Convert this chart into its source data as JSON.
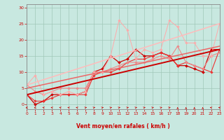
{
  "xlabel": "Vent moyen/en rafales ( km/h )",
  "background_color": "#c8e8e0",
  "grid_color": "#a0c8b8",
  "x_ticks": [
    0,
    1,
    2,
    3,
    4,
    5,
    6,
    7,
    8,
    9,
    10,
    11,
    12,
    13,
    14,
    15,
    16,
    17,
    18,
    19,
    20,
    21,
    22,
    23
  ],
  "y_ticks": [
    0,
    5,
    10,
    15,
    20,
    25,
    30
  ],
  "xlim": [
    0,
    23
  ],
  "ylim": [
    -1.5,
    31
  ],
  "series": [
    {
      "x": [
        0,
        1,
        2,
        3,
        4,
        5,
        6,
        7,
        8,
        9,
        10,
        11,
        12,
        13,
        14,
        15,
        16,
        17,
        18,
        19,
        20,
        21,
        22,
        23
      ],
      "y": [
        3,
        0,
        1,
        3,
        3,
        3,
        3,
        4,
        10,
        11,
        15,
        13,
        14,
        17,
        15,
        15,
        16,
        15,
        12,
        12,
        11,
        10,
        17,
        17
      ],
      "color": "#cc0000",
      "linewidth": 0.9,
      "marker": "D",
      "markersize": 2.0
    },
    {
      "x": [
        0,
        1,
        2,
        3,
        4,
        5,
        6,
        7,
        8,
        9,
        10,
        11,
        12,
        13,
        14,
        15,
        16,
        17,
        18,
        19,
        20,
        21,
        22,
        23
      ],
      "y": [
        3,
        1,
        1,
        2,
        3,
        3,
        3,
        3,
        9,
        10,
        10,
        11,
        13,
        14,
        14,
        15,
        16,
        15,
        12,
        13,
        12,
        11,
        10,
        17
      ],
      "color": "#ee3333",
      "linewidth": 0.8,
      "marker": "D",
      "markersize": 1.8
    },
    {
      "x": [
        0,
        1,
        2,
        3,
        4,
        5,
        6,
        7,
        8,
        9,
        10,
        11,
        12,
        13,
        14,
        15,
        16,
        17,
        18,
        19,
        20,
        21,
        22,
        23
      ],
      "y": [
        6,
        4,
        3,
        4,
        5,
        5,
        5,
        5,
        10,
        10,
        11,
        12,
        13,
        13,
        13,
        14,
        15,
        14,
        18,
        13,
        12,
        11,
        15,
        16
      ],
      "color": "#ee8888",
      "linewidth": 0.8,
      "marker": "D",
      "markersize": 1.8
    },
    {
      "x": [
        0,
        1,
        2,
        3,
        4,
        5,
        6,
        7,
        8,
        9,
        10,
        11,
        12,
        13,
        14,
        15,
        16,
        17,
        18,
        19,
        20,
        21,
        22,
        23
      ],
      "y": [
        6,
        9,
        3,
        4,
        3,
        4,
        3,
        4,
        10,
        10,
        15,
        26,
        23,
        14,
        17,
        16,
        17,
        26,
        24,
        19,
        19,
        15,
        15,
        25
      ],
      "color": "#ffaaaa",
      "linewidth": 0.7,
      "marker": "D",
      "markersize": 1.8
    },
    {
      "x": [
        0,
        23
      ],
      "y": [
        3,
        17
      ],
      "color": "#cc0000",
      "linewidth": 1.4,
      "marker": null,
      "markersize": 0
    },
    {
      "x": [
        0,
        23
      ],
      "y": [
        5,
        18
      ],
      "color": "#ee6666",
      "linewidth": 1.1,
      "marker": null,
      "markersize": 0
    },
    {
      "x": [
        0,
        23
      ],
      "y": [
        6,
        25
      ],
      "color": "#ffbbbb",
      "linewidth": 1.1,
      "marker": null,
      "markersize": 0
    }
  ],
  "arrow_angles_deg": [
    225,
    225,
    315,
    315,
    315,
    315,
    315,
    45,
    45,
    45,
    45,
    45,
    45,
    45,
    45,
    45,
    45,
    45,
    0,
    0,
    0,
    0,
    315,
    315
  ],
  "xlabel_color": "#cc0000",
  "tick_color": "#cc0000",
  "axis_color": "#888888"
}
